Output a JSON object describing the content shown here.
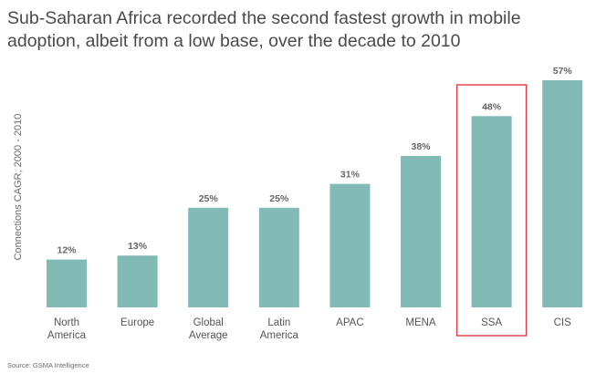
{
  "title_lines": [
    "Sub-Saharan Africa recorded the second fastest growth in mobile",
    "adoption, albeit from a low base, over the decade to 2010"
  ],
  "source": "Source: GSMA Intelligence",
  "colors": {
    "bar": "#82bab5",
    "highlight": "#e03a3e",
    "label": "#555555",
    "value": "#666666"
  },
  "chart_data": {
    "type": "bar",
    "title": "Sub-Saharan Africa recorded the second fastest growth in mobile adoption, albeit from a low base, over the decade to 2010",
    "ylabel": "Connections CAGR, 2000 - 2010",
    "xlabel": "",
    "categories": [
      [
        "North",
        "America"
      ],
      [
        "Europe"
      ],
      [
        "Global",
        "Average"
      ],
      [
        "Latin",
        "America"
      ],
      [
        "APAC"
      ],
      [
        "MENA"
      ],
      [
        "SSA"
      ],
      [
        "CIS"
      ]
    ],
    "values": [
      12,
      13,
      25,
      25,
      31,
      38,
      48,
      57
    ],
    "value_labels": [
      "12%",
      "13%",
      "25%",
      "25%",
      "31%",
      "38%",
      "48%",
      "57%"
    ],
    "highlight_category": "SSA",
    "ylim": [
      0,
      57
    ],
    "grid": false,
    "legend": "none"
  }
}
